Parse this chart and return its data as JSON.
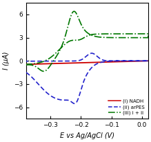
{
  "title": "",
  "xlabel": "E vs Ag/AgCl (V)",
  "ylabel": "I (μA)",
  "xlim": [
    -0.38,
    0.02
  ],
  "ylim": [
    -7.5,
    7.5
  ],
  "xticks": [
    -0.3,
    -0.2,
    -0.1,
    0.0
  ],
  "yticks": [
    -6,
    -3,
    0,
    3,
    6
  ],
  "legend": {
    "entries": [
      "(i) NADH",
      "(ii) arPES",
      "(iii) i + ii"
    ],
    "colors": [
      "#cc0000",
      "#2222cc",
      "#007700"
    ],
    "styles": [
      "-",
      "--",
      "-."
    ]
  },
  "background": "#ffffff",
  "line_colors": {
    "nadh": "#cc0000",
    "arpes": "#2222cc",
    "combined": "#007700"
  }
}
